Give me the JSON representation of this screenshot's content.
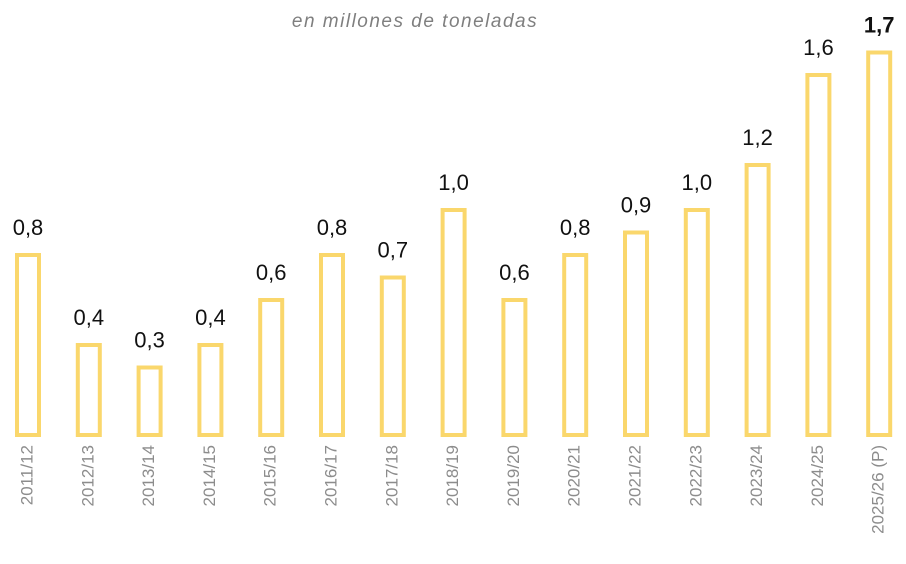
{
  "chart_data": {
    "type": "bar",
    "title": "en millones de toneladas",
    "categories": [
      "2011/12",
      "2012/13",
      "2013/14",
      "2014/15",
      "2015/16",
      "2016/17",
      "2017/18",
      "2018/19",
      "2019/20",
      "2020/21",
      "2021/22",
      "2022/23",
      "2023/24",
      "2024/25",
      "2025/26 (P)"
    ],
    "values": [
      0.8,
      0.4,
      0.3,
      0.4,
      0.6,
      0.8,
      0.7,
      1.0,
      0.6,
      0.8,
      0.9,
      1.0,
      1.2,
      1.6,
      1.7
    ],
    "value_labels": [
      "0,8",
      "0,4",
      "0,3",
      "0,4",
      "0,6",
      "0,8",
      "0,7",
      "1,0",
      "0,6",
      "0,8",
      "0,9",
      "1,0",
      "1,2",
      "1,6",
      "1,7"
    ],
    "color": "#fad76c"
  }
}
